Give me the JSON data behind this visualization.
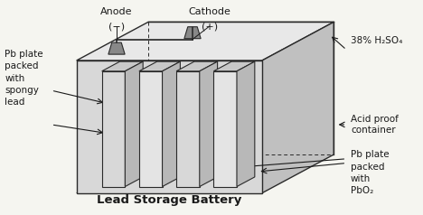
{
  "bg_color": "#f5f5f0",
  "ec": "#2a2a2a",
  "lw": 1.0,
  "title": "Lead Storage Battery",
  "label_anode": "Anode",
  "label_anode_sign": "(−)",
  "label_cathode": "Cathode",
  "label_cathode_sign": "(+)",
  "label_h2so4": "38% H₂SO₄",
  "label_acid_proof": "Acid proof\ncontainer",
  "label_pb_spongy": "Pb plate\npacked\nwith\nspongy\nlead",
  "label_pb_pbo2": "Pb plate\npacked\nwith\nPbO₂",
  "font_color": "#1a1a1a",
  "title_fontsize": 9.5,
  "label_fontsize": 7.5,
  "face_front": "#d8d8d8",
  "face_top": "#e8e8e8",
  "face_right": "#c0c0c0",
  "plate_face": "#d0d0d0",
  "plate_top": "#c8c8c8",
  "plate_side": "#b8b8b8",
  "terminal_color": "#888888",
  "wire_color": "#333333"
}
